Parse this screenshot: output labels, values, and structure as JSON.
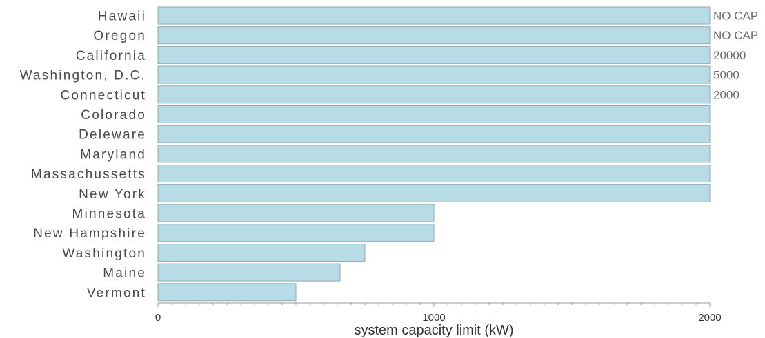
{
  "chart_data": {
    "type": "bar",
    "orientation": "horizontal",
    "categories": [
      "Hawaii",
      "Oregon",
      "California",
      "Washington, D.C.",
      "Connecticut",
      "Colorado",
      "Deleware",
      "Maryland",
      "Massachussetts",
      "New York",
      "Minnesota",
      "New Hampshire",
      "Washington",
      "Maine",
      "Vermont"
    ],
    "values": [
      2000,
      2000,
      2000,
      2000,
      2000,
      2000,
      2000,
      2000,
      2000,
      2000,
      1000,
      1000,
      750,
      660,
      500
    ],
    "data_labels": [
      "NO CAP",
      "NO CAP",
      "20000",
      "5000",
      "2000",
      "",
      "",
      "",
      "",
      "",
      "",
      "",
      "",
      "",
      ""
    ],
    "xlabel": "system capacity limit (kW)",
    "ylabel": "",
    "title": "",
    "xlim": [
      0,
      2000
    ],
    "x_ticks": [
      0,
      1000,
      2000
    ],
    "grid": false,
    "legend": "none",
    "colors": {
      "bar_fill": "#b7dce6",
      "bar_stroke": "#8fa9b2",
      "axis": "#999999"
    }
  }
}
